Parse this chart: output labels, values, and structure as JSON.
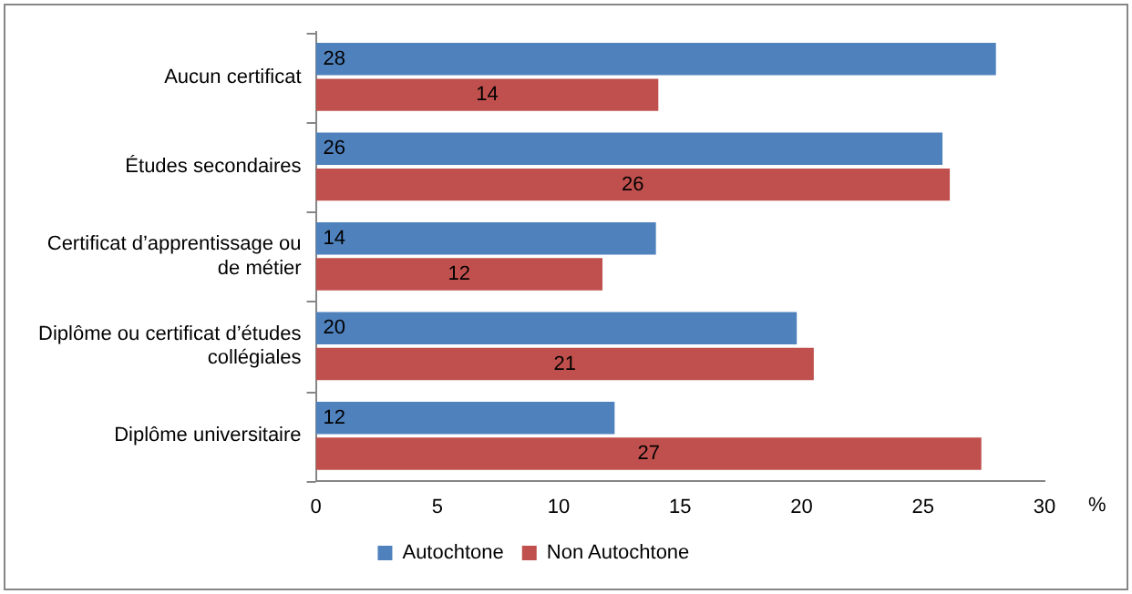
{
  "chart_data": {
    "type": "bar",
    "orientation": "horizontal",
    "categories": [
      "Aucun certificat",
      "Études secondaires",
      "Certificat d’apprentissage ou de métier",
      "Diplôme ou certificat d’études collégiales",
      "Diplôme universitaire"
    ],
    "series": [
      {
        "name": "Autochtone",
        "color": "#4f81bd",
        "values": [
          28.0,
          25.8,
          14.0,
          19.8,
          12.3
        ],
        "value_labels": [
          "28",
          "26",
          "14",
          "20",
          "12"
        ]
      },
      {
        "name": "Non Autochtone",
        "color": "#c0504d",
        "values": [
          14.1,
          26.1,
          11.8,
          20.5,
          27.4
        ],
        "value_labels": [
          "14",
          "26",
          "12",
          "21",
          "27"
        ]
      }
    ],
    "xlim": [
      0,
      30
    ],
    "xticks": [
      0,
      5,
      10,
      15,
      20,
      25,
      30
    ],
    "xlabel": "%",
    "grid": false,
    "legend": "bottom"
  }
}
